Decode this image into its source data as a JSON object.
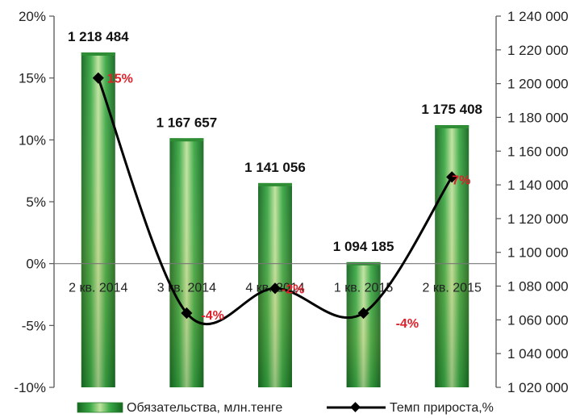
{
  "chart_data": {
    "type": "bar",
    "categories": [
      "2 кв. 2014",
      "3 кв. 2014",
      "4 кв. 2014",
      "1 кв. 2015",
      "2 кв. 2015"
    ],
    "series": [
      {
        "name": "Обязательства, млн.тенге",
        "type": "bar",
        "axis": "right",
        "values": [
          1218484,
          1167657,
          1141056,
          1094185,
          1175408
        ],
        "labels": [
          "1 218 484",
          "1 167 657",
          "1 141 056",
          "1 094 185",
          "1 175 408"
        ],
        "color": "#2e9a3a"
      },
      {
        "name": "Темп прироста,%",
        "type": "line",
        "axis": "left",
        "values": [
          15,
          -4,
          -2,
          -4,
          7
        ],
        "labels": [
          "15%",
          "-4%",
          "-2%",
          "-4%",
          "7%"
        ],
        "color": "#000000",
        "label_color": "#e0202a"
      }
    ],
    "y_left": {
      "ticks": [
        "20%",
        "15%",
        "10%",
        "5%",
        "0%",
        "-5%",
        "-10%"
      ],
      "tick_values": [
        20,
        15,
        10,
        5,
        0,
        -5,
        -10
      ],
      "ylim": [
        -10,
        20
      ]
    },
    "y_right": {
      "ticks": [
        "1 240 000",
        "1 220 000",
        "1 200 000",
        "1 180 000",
        "1 160 000",
        "1 140 000",
        "1 120 000",
        "1 100 000",
        "1 080 000",
        "1 060 000",
        "1 040 000",
        "1 020 000"
      ],
      "tick_values": [
        1240000,
        1220000,
        1200000,
        1180000,
        1160000,
        1140000,
        1120000,
        1100000,
        1080000,
        1060000,
        1040000,
        1020000
      ],
      "ylim": [
        1020000,
        1240000
      ]
    },
    "legend": {
      "position": "bottom",
      "entries": [
        "Обязательства, млн.тенге",
        "Темп прироста,%"
      ]
    },
    "grid": false
  }
}
